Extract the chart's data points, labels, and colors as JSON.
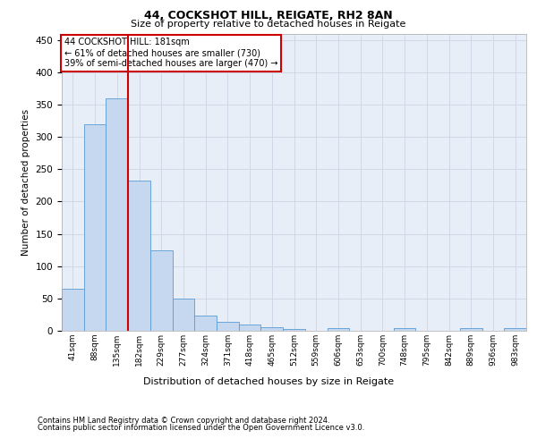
{
  "title1": "44, COCKSHOT HILL, REIGATE, RH2 8AN",
  "title2": "Size of property relative to detached houses in Reigate",
  "xlabel": "Distribution of detached houses by size in Reigate",
  "ylabel": "Number of detached properties",
  "footer1": "Contains HM Land Registry data © Crown copyright and database right 2024.",
  "footer2": "Contains public sector information licensed under the Open Government Licence v3.0.",
  "annotation_line1": "44 COCKSHOT HILL: 181sqm",
  "annotation_line2": "← 61% of detached houses are smaller (730)",
  "annotation_line3": "39% of semi-detached houses are larger (470) →",
  "categories": [
    "41sqm",
    "88sqm",
    "135sqm",
    "182sqm",
    "229sqm",
    "277sqm",
    "324sqm",
    "371sqm",
    "418sqm",
    "465sqm",
    "512sqm",
    "559sqm",
    "606sqm",
    "653sqm",
    "700sqm",
    "748sqm",
    "795sqm",
    "842sqm",
    "889sqm",
    "936sqm",
    "983sqm"
  ],
  "values": [
    65,
    320,
    360,
    233,
    125,
    50,
    23,
    14,
    9,
    6,
    3,
    0,
    4,
    0,
    0,
    4,
    0,
    0,
    4,
    0,
    4
  ],
  "bar_color": "#c5d8f0",
  "bar_edge_color": "#5b9bd5",
  "vline_color": "#cc0000",
  "vline_position": 3,
  "grid_color": "#d0d8e8",
  "bg_color": "#e8eef8",
  "annotation_box_color": "#cc0000",
  "ylim": [
    0,
    460
  ],
  "yticks": [
    0,
    50,
    100,
    150,
    200,
    250,
    300,
    350,
    400,
    450
  ]
}
